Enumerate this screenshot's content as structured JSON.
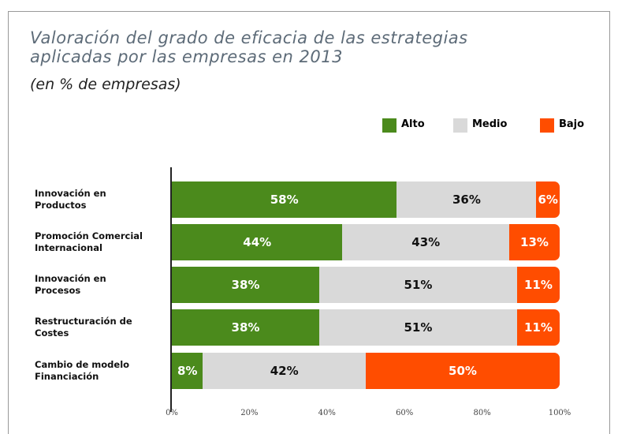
{
  "chart_data": {
    "type": "stacked_bar_horizontal",
    "title": "Valoración del grado de eficacia de las estrategias aplicadas por las empresas en 2013",
    "subtitle": "(en % de empresas)",
    "categories": [
      "Innovación en Productos",
      "Promoción Comercial Internacional",
      "Innovación en Procesos",
      "Restructuración de Costes",
      "Cambio de modelo Financiación"
    ],
    "series": [
      {
        "name": "Alto",
        "color": "#4b8a1c",
        "values": [
          58,
          44,
          38,
          38,
          8
        ],
        "value_labels": [
          "58%",
          "44%",
          "38%",
          "38%",
          "8%"
        ]
      },
      {
        "name": "Medio",
        "color": "#d9d9d9",
        "values": [
          36,
          43,
          51,
          51,
          42
        ],
        "value_labels": [
          "36%",
          "43%",
          "51%",
          "51%",
          "42%"
        ]
      },
      {
        "name": "Bajo",
        "color": "#ff4d00",
        "values": [
          6,
          13,
          11,
          11,
          50
        ],
        "value_labels": [
          "6%",
          "13%",
          "11%",
          "11%",
          "50%"
        ]
      }
    ],
    "xlim": [
      0,
      100
    ],
    "xticks": [
      {
        "value": 0,
        "label": "0%"
      },
      {
        "value": 20,
        "label": "20%"
      },
      {
        "value": 40,
        "label": "40%"
      },
      {
        "value": 60,
        "label": "60%"
      },
      {
        "value": 80,
        "label": "80%"
      },
      {
        "value": 100,
        "label": "100%"
      }
    ],
    "legend": "top-right"
  }
}
